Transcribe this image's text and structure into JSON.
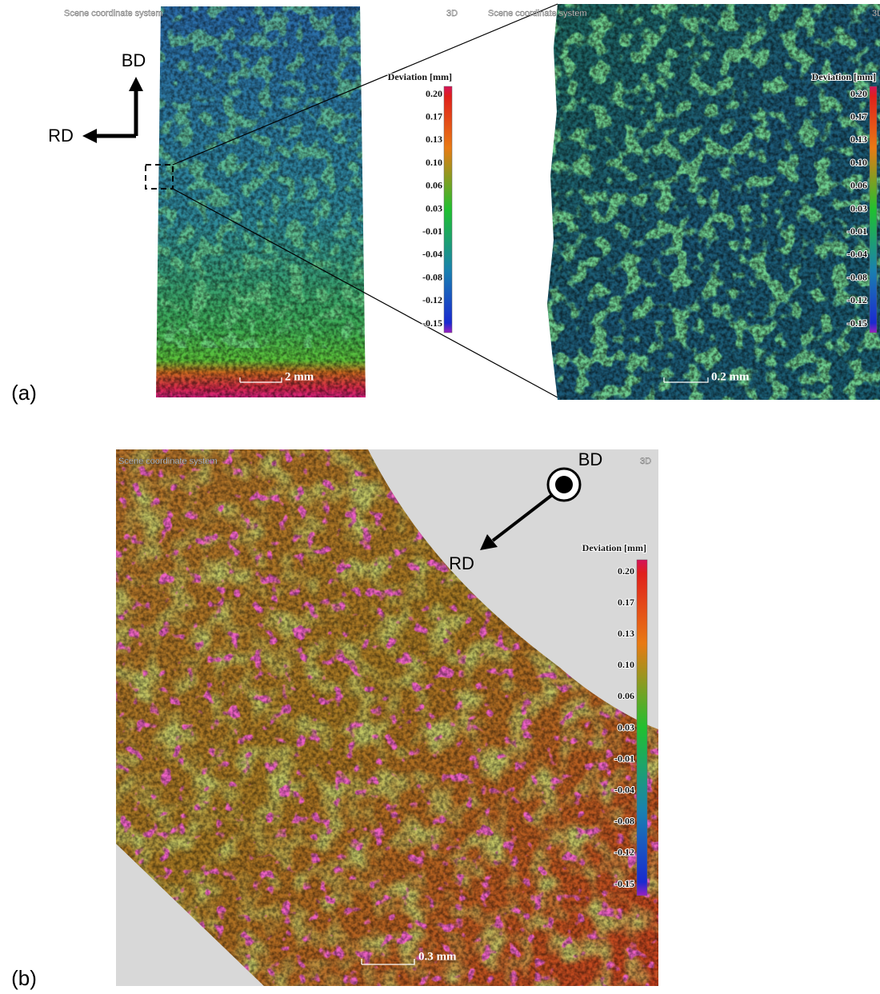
{
  "panel_a": {
    "label": "(a)",
    "axes": {
      "up": "BD",
      "left": "RD"
    },
    "overview": {
      "header": "Scene coordinate system",
      "badge": "3D",
      "scale_bar": "2 mm"
    },
    "zoom": {
      "header": "Scene coordinate system",
      "badge": "3D",
      "scale_bar": "0.2 mm"
    }
  },
  "panel_b": {
    "label": "(b)",
    "axes": {
      "out": "BD",
      "arrow": "RD"
    },
    "header": "Scene coordinate system",
    "badge": "3D",
    "scale_bar": "0.3 mm"
  },
  "colorbar": {
    "title": "Deviation [mm]",
    "ticks": [
      "0.20",
      "0.17",
      "0.13",
      "0.10",
      "0.06",
      "0.03",
      "-0.01",
      "-0.04",
      "-0.08",
      "-0.12",
      "-0.15"
    ]
  }
}
